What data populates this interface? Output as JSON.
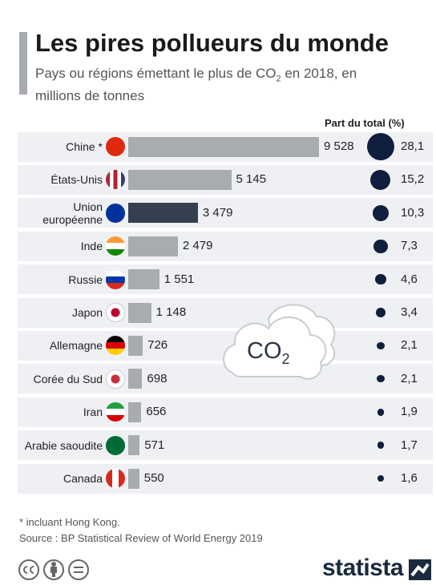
{
  "chart_data": {
    "type": "bar",
    "title": "Les pires pollueurs du monde",
    "subtitle": {
      "before": "Pays ou régions émettant le plus de CO",
      "subscript": "2",
      "after": " en 2018, en millions de tonnes"
    },
    "categories": [
      "Chine *",
      "États-Unis",
      "Union européenne",
      "Inde",
      "Russie",
      "Japon",
      "Allemagne",
      "Corée du Sud",
      "Iran",
      "Arabie saoudite",
      "Canada"
    ],
    "series": [
      {
        "values": [
          9528,
          5145,
          3479,
          2479,
          1551,
          1148,
          726,
          698,
          656,
          571,
          550
        ],
        "value_labels": [
          "9 528",
          "5 145",
          "3 479",
          "2 479",
          "1 551",
          "1 148",
          "726",
          "698",
          "656",
          "571",
          "550"
        ],
        "colors": [
          "#a8acb1",
          "#a8acb1",
          "#34404f",
          "#a8acb1",
          "#a8acb1",
          "#a8acb1",
          "#a8acb1",
          "#a8acb1",
          "#a8acb1",
          "#a8acb1",
          "#a8acb1"
        ]
      },
      {
        "name": "Part du total (%)",
        "color": "#0f1f3d",
        "values": [
          28.1,
          15.2,
          10.3,
          7.3,
          4.6,
          3.4,
          2.1,
          2.1,
          1.9,
          1.7,
          1.6
        ],
        "value_labels": [
          "28,1",
          "15,2",
          "10,3",
          "7,3",
          "4,6",
          "3,4",
          "2,1",
          "2,1",
          "1,9",
          "1,7",
          "1,6"
        ]
      }
    ],
    "illustration": {
      "text": "CO",
      "subscript": "2"
    },
    "footnote": "* incluant Hong Kong.",
    "source": "Source : BP Statistical Review of World Energy 2019",
    "brand": "statista"
  }
}
